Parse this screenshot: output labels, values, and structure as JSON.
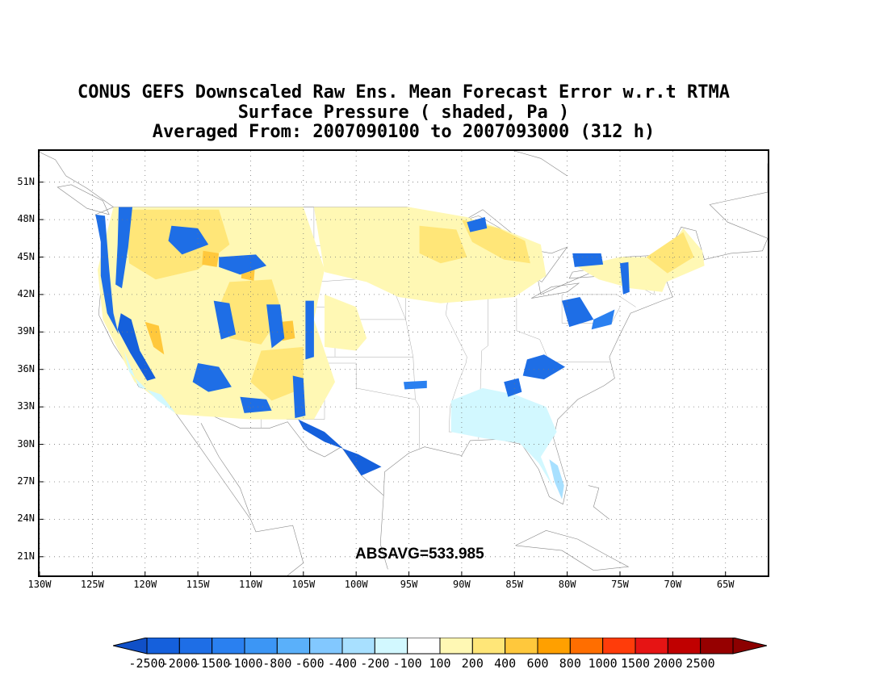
{
  "title": {
    "line1": "CONUS GEFS Downscaled Raw Ens. Mean Forecast Error w.r.t RTMA",
    "line2": "Surface Pressure ( shaded, Pa )",
    "line3": "Averaged From: 2007090100 to 2007093000 (312 h)"
  },
  "map": {
    "lon_range": [
      -130,
      -61
    ],
    "lat_range": [
      19.5,
      53.5
    ],
    "lat_ticks": [
      "21N",
      "24N",
      "27N",
      "30N",
      "33N",
      "36N",
      "39N",
      "42N",
      "45N",
      "48N",
      "51N"
    ],
    "lat_values": [
      21,
      24,
      27,
      30,
      33,
      36,
      39,
      42,
      45,
      48,
      51
    ],
    "lon_ticks": [
      "130W",
      "125W",
      "120W",
      "115W",
      "110W",
      "105W",
      "100W",
      "95W",
      "90W",
      "85W",
      "80W",
      "75W",
      "70W",
      "65W"
    ],
    "lon_values": [
      -130,
      -125,
      -120,
      -115,
      -110,
      -105,
      -100,
      -95,
      -90,
      -85,
      -80,
      -75,
      -70,
      -65
    ],
    "grid": true,
    "statistic": "ABSAVG=533.985"
  },
  "colorbar": {
    "labels": [
      "-2500",
      "-2000",
      "-1500",
      "-1000",
      "-800",
      "-600",
      "-400",
      "-200",
      "-100",
      "100",
      "200",
      "400",
      "600",
      "800",
      "1000",
      "1500",
      "2000",
      "2500"
    ],
    "colors": [
      "#1560dc",
      "#1e6ee6",
      "#2a80f0",
      "#3c96f5",
      "#5ab0fa",
      "#82c8ff",
      "#a8e0ff",
      "#d2f8ff",
      "#ffffff",
      "#fff8b4",
      "#ffe678",
      "#ffc83c",
      "#ffa000",
      "#ff6e00",
      "#ff3c0a",
      "#e61414",
      "#c00000",
      "#960000"
    ],
    "under_color": "#1050c8",
    "over_color": "#8c0000"
  }
}
